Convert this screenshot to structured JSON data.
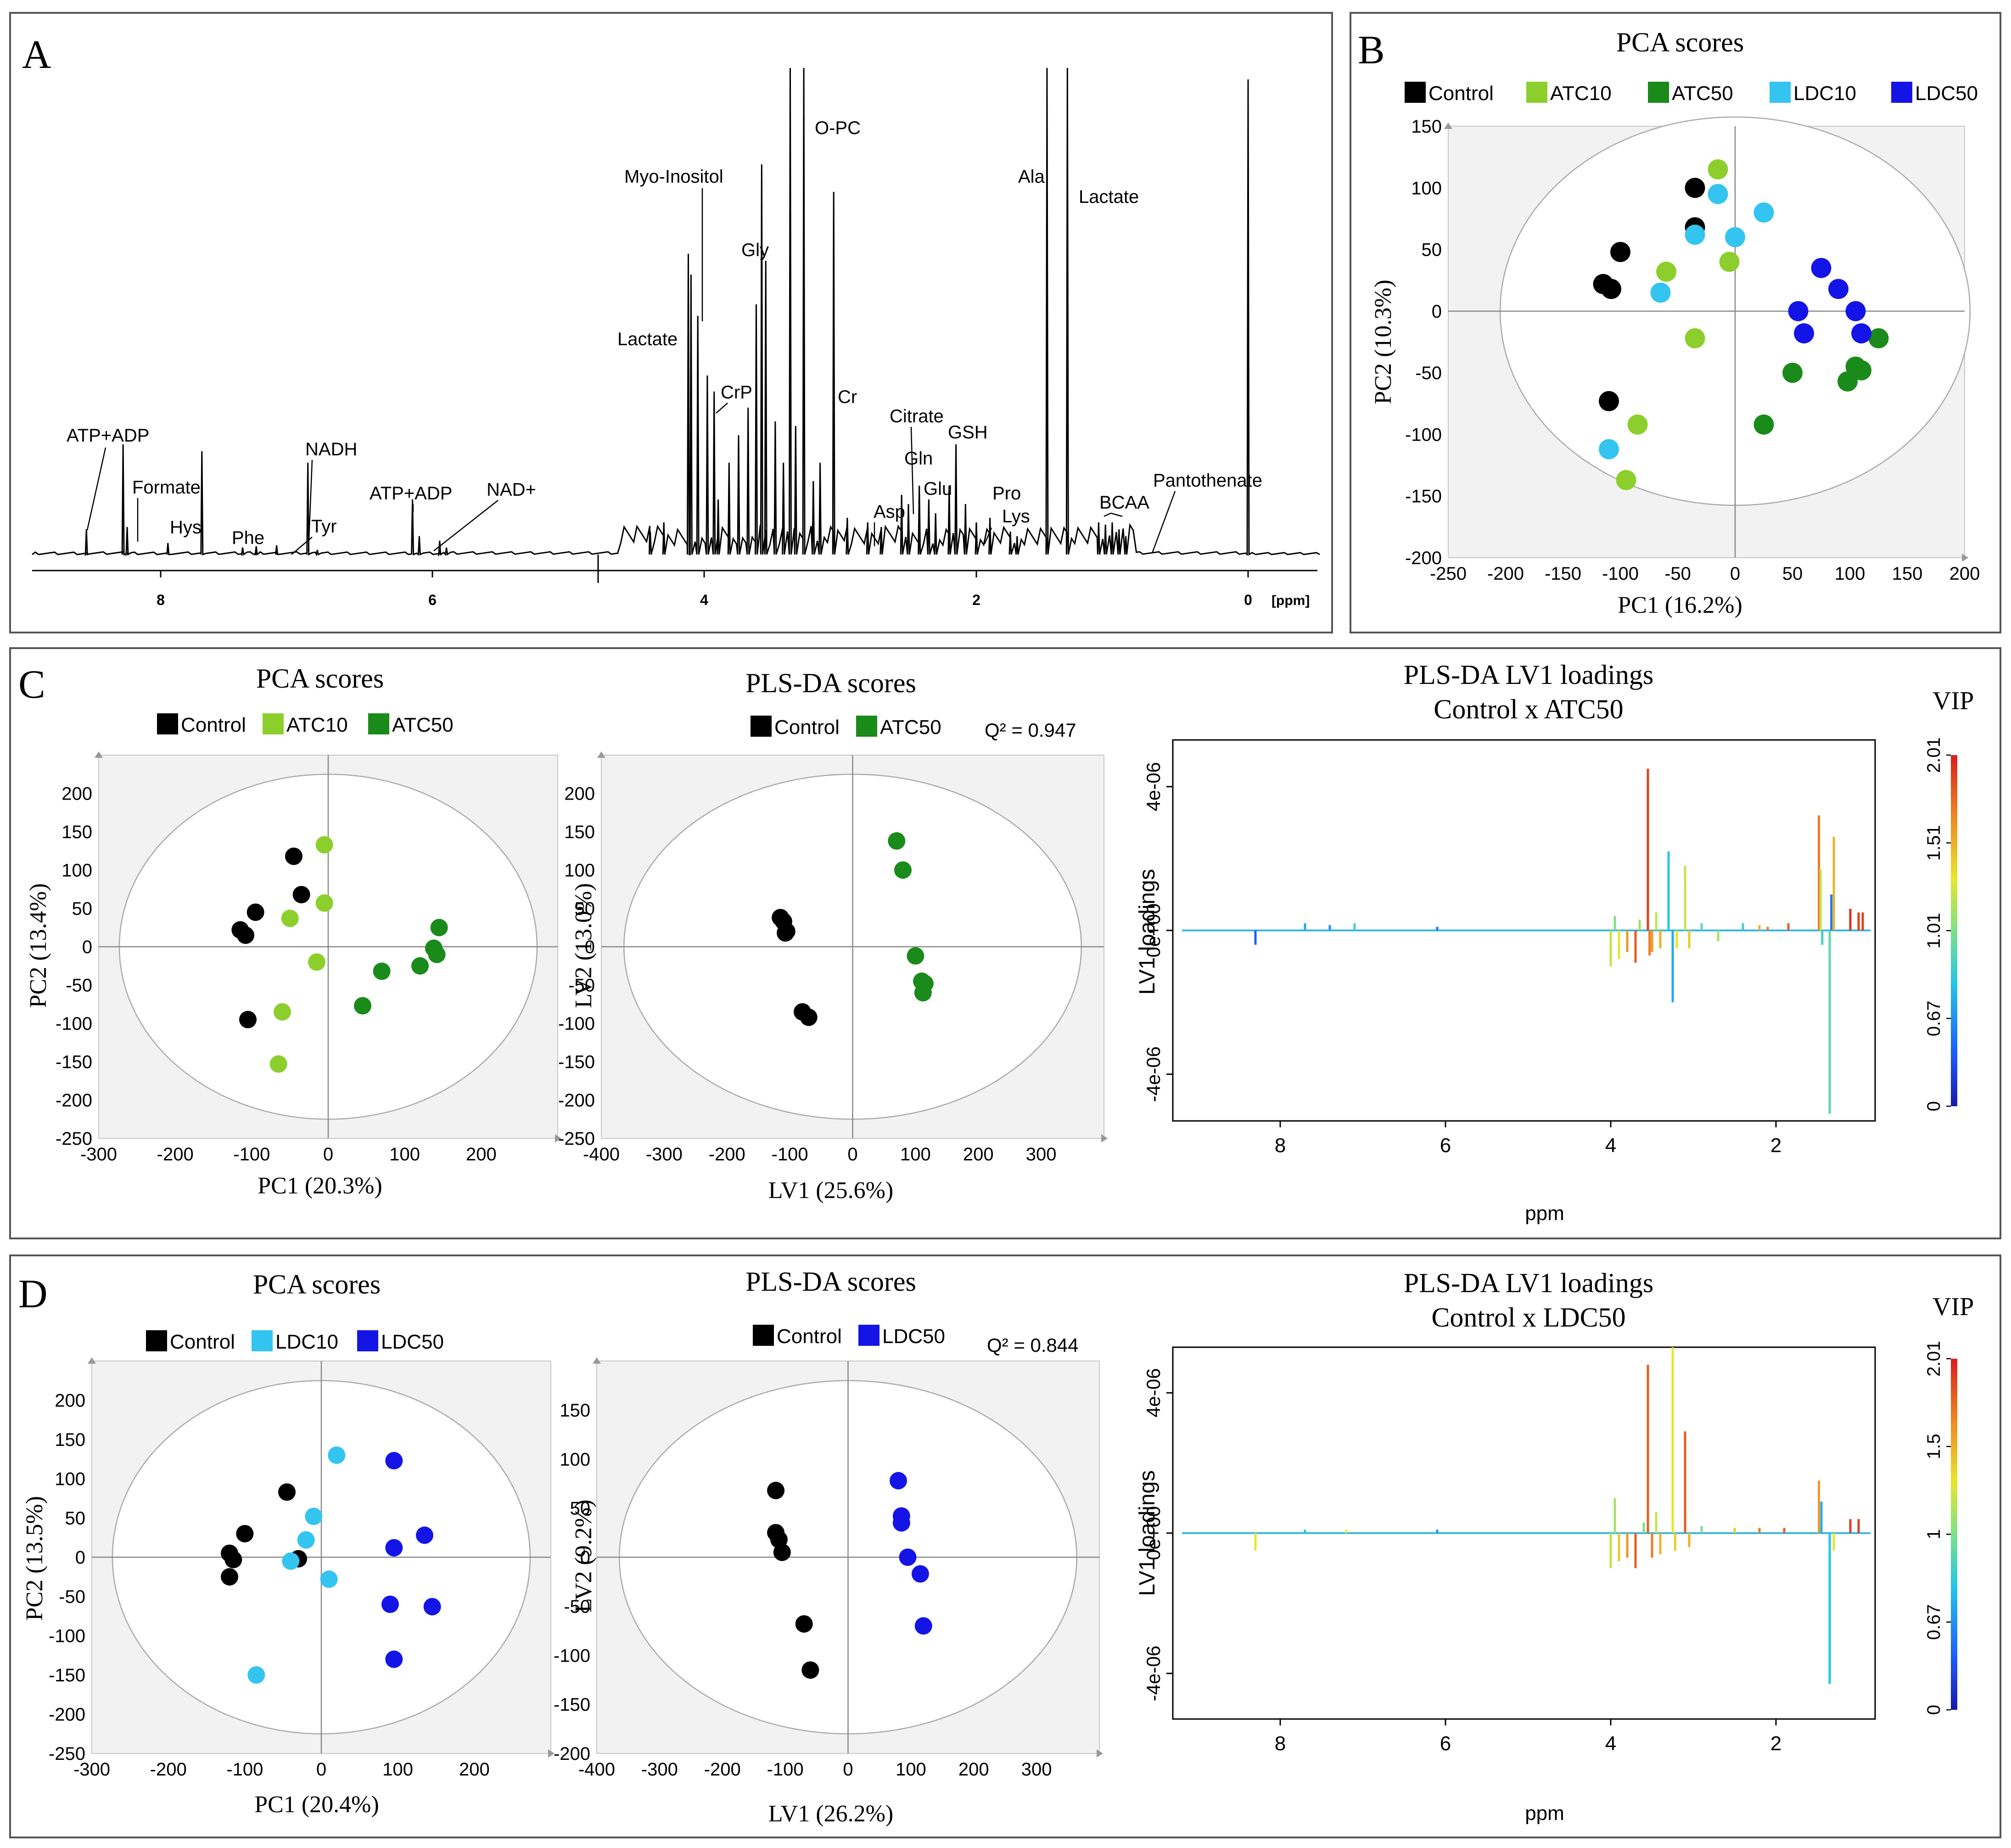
{
  "panel_labels": {
    "a": "A",
    "b": "B",
    "c": "C",
    "d": "D"
  },
  "colors": {
    "control": "#000000",
    "atc10": "#8ccf2d",
    "atc50": "#1a8a1a",
    "ldc10": "#33c4f0",
    "ldc50": "#1414e6",
    "plot_bg": "#f2f2f2",
    "spectrum": "#000000"
  },
  "spectrum": {
    "unit_label": "[ppm]",
    "ticks": [
      "8",
      "6",
      "4",
      "2",
      "0"
    ],
    "annotations": [
      "ATP+ADP",
      "Formate",
      "Hys",
      "Phe",
      "NADH",
      "Tyr",
      "ATP+ADP",
      "NAD+",
      "Myo-Inositol",
      "Lactate",
      "CrP",
      "Gly",
      "O-PC",
      "Cr",
      "Asp",
      "Citrate",
      "Gln",
      "Glu",
      "GSH",
      "Pro",
      "Lys",
      "Ala",
      "Lactate",
      "BCAA",
      "Pantothenate"
    ]
  },
  "chart_data": [
    {
      "id": "B",
      "type": "scatter",
      "title": "PCA scores",
      "xlabel": "PC1 (16.2%)",
      "ylabel": "PC2 (10.3%)",
      "xlim": [
        -250,
        200
      ],
      "ylim": [
        -200,
        150
      ],
      "xticks": [
        "-250",
        "-200",
        "-150",
        "-100",
        "-50",
        "0",
        "50",
        "100",
        "150",
        "200"
      ],
      "yticks": [
        "150",
        "100",
        "50",
        "0",
        "-50",
        "-100",
        "-150",
        "-200"
      ],
      "legend": [
        "Control",
        "ATC10",
        "ATC50",
        "LDC10",
        "LDC50"
      ],
      "series": [
        {
          "name": "Control",
          "points": [
            [
              -100,
              48
            ],
            [
              -115,
              22
            ],
            [
              -108,
              18
            ],
            [
              -35,
              100
            ],
            [
              -35,
              68
            ],
            [
              -110,
              -73
            ]
          ]
        },
        {
          "name": "ATC10",
          "points": [
            [
              -15,
              115
            ],
            [
              -60,
              32
            ],
            [
              -5,
              40
            ],
            [
              -35,
              -22
            ],
            [
              -85,
              -92
            ],
            [
              -95,
              -137
            ]
          ]
        },
        {
          "name": "ATC50",
          "points": [
            [
              110,
              -48
            ],
            [
              125,
              -22
            ],
            [
              98,
              -57
            ],
            [
              105,
              -45
            ],
            [
              50,
              -50
            ],
            [
              25,
              -92
            ]
          ]
        },
        {
          "name": "LDC10",
          "points": [
            [
              -15,
              95
            ],
            [
              -35,
              62
            ],
            [
              0,
              60
            ],
            [
              25,
              80
            ],
            [
              -65,
              15
            ],
            [
              -110,
              -112
            ]
          ]
        },
        {
          "name": "LDC50",
          "points": [
            [
              75,
              35
            ],
            [
              90,
              18
            ],
            [
              55,
              0
            ],
            [
              105,
              0
            ],
            [
              60,
              -18
            ],
            [
              110,
              -18
            ]
          ]
        }
      ]
    },
    {
      "id": "C1",
      "type": "scatter",
      "title": "PCA scores",
      "xlabel": "PC1 (20.3%)",
      "ylabel": "PC2 (13.4%)",
      "xlim": [
        -300,
        300
      ],
      "ylim": [
        -250,
        250
      ],
      "xticks": [
        "-300",
        "-200",
        "-100",
        "0",
        "100",
        "200"
      ],
      "yticks": [
        "200",
        "150",
        "100",
        "50",
        "0",
        "-50",
        "-100",
        "-150",
        "-200",
        "-250"
      ],
      "legend": [
        "Control",
        "ATC10",
        "ATC50"
      ],
      "series": [
        {
          "name": "Control",
          "points": [
            [
              -45,
              118
            ],
            [
              -35,
              68
            ],
            [
              -95,
              45
            ],
            [
              -115,
              22
            ],
            [
              -108,
              15
            ],
            [
              -105,
              -95
            ]
          ]
        },
        {
          "name": "ATC10",
          "points": [
            [
              -5,
              133
            ],
            [
              -5,
              57
            ],
            [
              -50,
              37
            ],
            [
              -15,
              -20
            ],
            [
              -60,
              -85
            ],
            [
              -65,
              -153
            ]
          ]
        },
        {
          "name": "ATC50",
          "points": [
            [
              145,
              25
            ],
            [
              142,
              -10
            ],
            [
              138,
              -2
            ],
            [
              120,
              -25
            ],
            [
              70,
              -32
            ],
            [
              45,
              -77
            ]
          ]
        }
      ]
    },
    {
      "id": "C2",
      "type": "scatter",
      "title": "PLS-DA scores",
      "xlabel": "LV1 (25.6%)",
      "ylabel": "LV2 (13.0%)",
      "annotation": "Q² = 0.947",
      "xlim": [
        -400,
        400
      ],
      "ylim": [
        -250,
        250
      ],
      "xticks": [
        "-400",
        "-300",
        "-200",
        "-100",
        "0",
        "100",
        "200",
        "300"
      ],
      "yticks": [
        "200",
        "150",
        "100",
        "50",
        "0",
        "-50",
        "-100",
        "-150",
        "-200",
        "-250"
      ],
      "legend": [
        "Control",
        "ATC50"
      ],
      "series": [
        {
          "name": "Control",
          "points": [
            [
              -115,
              38
            ],
            [
              -110,
              33
            ],
            [
              -105,
              20
            ],
            [
              -107,
              18
            ],
            [
              -80,
              -85
            ],
            [
              -70,
              -92
            ]
          ]
        },
        {
          "name": "ATC50",
          "points": [
            [
              70,
              138
            ],
            [
              80,
              100
            ],
            [
              100,
              -12
            ],
            [
              110,
              -45
            ],
            [
              115,
              -48
            ],
            [
              112,
              -60
            ]
          ]
        }
      ]
    },
    {
      "id": "D1",
      "type": "scatter",
      "title": "PCA scores",
      "xlabel": "PC1 (20.4%)",
      "ylabel": "PC2 (13.5%)",
      "xlim": [
        -300,
        300
      ],
      "ylim": [
        -250,
        250
      ],
      "xticks": [
        "-300",
        "-200",
        "-100",
        "0",
        "100",
        "200"
      ],
      "yticks": [
        "200",
        "150",
        "100",
        "50",
        "0",
        "-50",
        "-100",
        "-150",
        "-200",
        "-250"
      ],
      "legend": [
        "Control",
        "LDC10",
        "LDC50"
      ],
      "series": [
        {
          "name": "Control",
          "points": [
            [
              -45,
              83
            ],
            [
              -100,
              30
            ],
            [
              -120,
              5
            ],
            [
              -115,
              -3
            ],
            [
              -120,
              -25
            ],
            [
              -30,
              -2
            ]
          ]
        },
        {
          "name": "LDC10",
          "points": [
            [
              20,
              130
            ],
            [
              -10,
              52
            ],
            [
              -20,
              22
            ],
            [
              -40,
              -5
            ],
            [
              10,
              -28
            ],
            [
              -85,
              -150
            ]
          ]
        },
        {
          "name": "LDC50",
          "points": [
            [
              95,
              123
            ],
            [
              135,
              28
            ],
            [
              95,
              12
            ],
            [
              90,
              -60
            ],
            [
              145,
              -63
            ],
            [
              95,
              -130
            ]
          ]
        }
      ]
    },
    {
      "id": "D2",
      "type": "scatter",
      "title": "PLS-DA scores",
      "xlabel": "LV1 (26.2%)",
      "ylabel": "LV2 (9.2%)",
      "annotation": "Q² = 0.844",
      "xlim": [
        -400,
        400
      ],
      "ylim": [
        -200,
        200
      ],
      "xticks": [
        "-400",
        "-300",
        "-200",
        "-100",
        "0",
        "100",
        "200",
        "300"
      ],
      "yticks": [
        "150",
        "100",
        "50",
        "0",
        "-50",
        "-100",
        "-150",
        "-200"
      ],
      "legend": [
        "Control",
        "LDC50"
      ],
      "series": [
        {
          "name": "Control",
          "points": [
            [
              -115,
              68
            ],
            [
              -115,
              25
            ],
            [
              -110,
              18
            ],
            [
              -105,
              5
            ],
            [
              -70,
              -68
            ],
            [
              -60,
              -115
            ]
          ]
        },
        {
          "name": "LDC50",
          "points": [
            [
              80,
              78
            ],
            [
              85,
              42
            ],
            [
              85,
              35
            ],
            [
              95,
              0
            ],
            [
              115,
              -17
            ],
            [
              120,
              -70
            ]
          ]
        }
      ]
    },
    {
      "id": "C3",
      "type": "bar",
      "title": "PLS-DA LV1 loadings",
      "subtitle": "Control x ATC50",
      "xlabel": "ppm",
      "ylabel": "LV1 loadings",
      "xlim": [
        9.3,
        0.8
      ],
      "ylim": [
        -5.3,
        5.3
      ],
      "xticks": [
        "8",
        "6",
        "4",
        "2"
      ],
      "yticks": [
        "4e-06",
        "0e+00",
        "-4e-06"
      ],
      "colorbar_title": "VIP",
      "colorbar_ticks": [
        "2.01",
        "1.51",
        "1.01",
        "0.67",
        "0"
      ],
      "peaks": [
        [
          8.3,
          -0.4,
          0.3
        ],
        [
          7.7,
          0.2,
          0.6
        ],
        [
          7.4,
          0.15,
          0.5
        ],
        [
          7.1,
          0.2,
          0.8
        ],
        [
          6.1,
          0.1,
          0.4
        ],
        [
          4.0,
          -1.0,
          1.2
        ],
        [
          3.95,
          0.4,
          1.0
        ],
        [
          3.9,
          -0.8,
          1.3
        ],
        [
          3.8,
          -0.6,
          1.6
        ],
        [
          3.7,
          -0.9,
          1.8
        ],
        [
          3.65,
          0.3,
          1.1
        ],
        [
          3.55,
          4.5,
          1.9
        ],
        [
          3.53,
          -0.7,
          1.7
        ],
        [
          3.5,
          -0.6,
          1.6
        ],
        [
          3.45,
          0.5,
          1.2
        ],
        [
          3.4,
          -0.5,
          1.5
        ],
        [
          3.3,
          2.2,
          0.7
        ],
        [
          3.25,
          -2.0,
          0.6
        ],
        [
          3.2,
          -0.5,
          1.3
        ],
        [
          3.1,
          1.8,
          1.2
        ],
        [
          3.05,
          -0.5,
          1.4
        ],
        [
          2.9,
          0.2,
          0.9
        ],
        [
          2.7,
          -0.3,
          1.1
        ],
        [
          2.4,
          0.2,
          0.8
        ],
        [
          2.2,
          0.15,
          1.5
        ],
        [
          2.1,
          0.1,
          1.7
        ],
        [
          1.85,
          0.2,
          1.8
        ],
        [
          1.48,
          3.2,
          1.7
        ],
        [
          1.46,
          1.7,
          1.2
        ],
        [
          1.44,
          -0.4,
          0.8
        ],
        [
          1.35,
          -5.1,
          0.9
        ],
        [
          1.33,
          1.0,
          0.4
        ],
        [
          1.3,
          2.6,
          1.5
        ],
        [
          1.1,
          0.6,
          1.95
        ],
        [
          1.0,
          0.5,
          1.9
        ],
        [
          0.95,
          0.5,
          1.9
        ]
      ]
    },
    {
      "id": "D3",
      "type": "bar",
      "title": "PLS-DA LV1 loadings",
      "subtitle": "Control x LDC50",
      "xlabel": "ppm",
      "ylabel": "LV1 loadings",
      "xlim": [
        9.3,
        0.8
      ],
      "ylim": [
        -5.3,
        5.3
      ],
      "xticks": [
        "8",
        "6",
        "4",
        "2"
      ],
      "yticks": [
        "4e-06",
        "0e+00",
        "-4e-06"
      ],
      "colorbar_title": "VIP",
      "colorbar_ticks": [
        "2.01",
        "1.5",
        "1",
        "0.67",
        "0"
      ],
      "peaks": [
        [
          8.3,
          -0.5,
          1.3
        ],
        [
          7.7,
          0.1,
          0.7
        ],
        [
          7.2,
          0.1,
          1.3
        ],
        [
          6.1,
          0.1,
          0.5
        ],
        [
          4.0,
          -1.0,
          1.2
        ],
        [
          3.95,
          1.0,
          1.1
        ],
        [
          3.9,
          -0.8,
          1.4
        ],
        [
          3.8,
          -0.7,
          1.6
        ],
        [
          3.7,
          -1.0,
          1.8
        ],
        [
          3.6,
          0.3,
          1.0
        ],
        [
          3.55,
          4.8,
          1.8
        ],
        [
          3.5,
          -0.7,
          1.7
        ],
        [
          3.45,
          0.6,
          1.2
        ],
        [
          3.4,
          -0.6,
          1.5
        ],
        [
          3.25,
          5.3,
          1.3
        ],
        [
          3.22,
          -0.5,
          1.4
        ],
        [
          3.1,
          2.9,
          1.8
        ],
        [
          3.05,
          -0.4,
          1.5
        ],
        [
          2.9,
          0.2,
          1.0
        ],
        [
          2.5,
          0.15,
          1.4
        ],
        [
          2.2,
          0.15,
          1.7
        ],
        [
          1.9,
          0.15,
          1.8
        ],
        [
          1.48,
          1.5,
          1.6
        ],
        [
          1.45,
          0.9,
          0.6
        ],
        [
          1.35,
          -4.3,
          0.7
        ],
        [
          1.3,
          -0.5,
          1.3
        ],
        [
          1.1,
          0.4,
          1.9
        ],
        [
          1.0,
          0.4,
          1.9
        ]
      ]
    }
  ]
}
